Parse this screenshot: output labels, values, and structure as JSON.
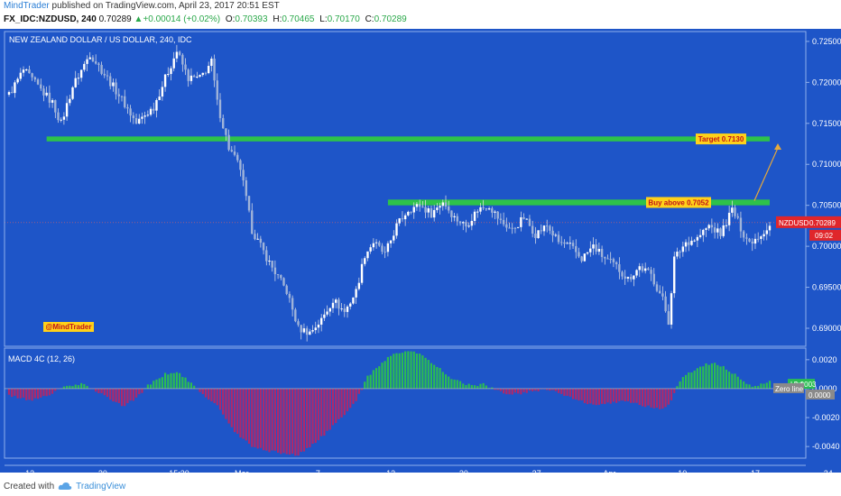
{
  "header": {
    "author": "MindTrader",
    "published": " published on TradingView.com, April 23, 2017 20:51 EST",
    "symbol": "FX_IDC:NZDUSD, 240",
    "last": "0.70289",
    "change": "+0.00014 (+0.02%)",
    "o_label": "O:",
    "o": "0.70393",
    "h_label": "H:",
    "h": "0.70465",
    "l_label": "L:",
    "l": "0.70170",
    "c_label": "C:",
    "c": "0.70289"
  },
  "footer": {
    "created_with": "Created with",
    "brand": "TradingView"
  },
  "colors": {
    "background": "#1e55c8",
    "panel_border": "#8fb0ec",
    "candle": "#e8e8e8",
    "zone": "#2ec24a",
    "arrow": "#e8a93a",
    "price_badge": "#e0262b",
    "macd_pos": "#2bbd52",
    "macd_neg": "#b0286a",
    "label_bg": "#ffd11a",
    "label_text": "#c0141b"
  },
  "chart_data": [
    {
      "type": "candlestick",
      "title": "NEW ZEALAND DOLLAR / US DOLLAR, 240, IDC",
      "ylim": [
        0.6878,
        0.7262
      ],
      "y_ticks": [
        0.725,
        0.72,
        0.715,
        0.71,
        0.705,
        0.7,
        0.695,
        0.69
      ],
      "y_tick_labels": [
        "0.72500",
        "0.72000",
        "0.71500",
        "0.71000",
        "0.70500",
        "0.70000",
        "0.69500",
        "0.69000"
      ],
      "x_tick_labels": [
        "13",
        "20",
        "15:30",
        "Mar",
        "7",
        "13",
        "20",
        "27",
        "Apr",
        "10",
        "17",
        "24"
      ],
      "trend_path": [
        [
          0,
          0.7185
        ],
        [
          5,
          0.7215
        ],
        [
          10,
          0.7195
        ],
        [
          15,
          0.7175
        ],
        [
          18,
          0.715
        ],
        [
          22,
          0.7195
        ],
        [
          28,
          0.7235
        ],
        [
          34,
          0.7205
        ],
        [
          38,
          0.7185
        ],
        [
          44,
          0.715
        ],
        [
          50,
          0.717
        ],
        [
          54,
          0.7205
        ],
        [
          58,
          0.7238
        ],
        [
          62,
          0.7205
        ],
        [
          66,
          0.7205
        ],
        [
          70,
          0.7225
        ],
        [
          72,
          0.7175
        ],
        [
          76,
          0.712
        ],
        [
          80,
          0.7095
        ],
        [
          84,
          0.702
        ],
        [
          90,
          0.698
        ],
        [
          96,
          0.6945
        ],
        [
          100,
          0.69
        ],
        [
          104,
          0.6895
        ],
        [
          108,
          0.691
        ],
        [
          112,
          0.6935
        ],
        [
          116,
          0.692
        ],
        [
          120,
          0.6945
        ],
        [
          123,
          0.699
        ],
        [
          126,
          0.7005
        ],
        [
          130,
          0.699
        ],
        [
          134,
          0.7025
        ],
        [
          138,
          0.7045
        ],
        [
          142,
          0.705
        ],
        [
          146,
          0.704
        ],
        [
          150,
          0.7055
        ],
        [
          154,
          0.7035
        ],
        [
          158,
          0.7025
        ],
        [
          162,
          0.7045
        ],
        [
          166,
          0.705
        ],
        [
          170,
          0.703
        ],
        [
          174,
          0.702
        ],
        [
          178,
          0.7035
        ],
        [
          182,
          0.7015
        ],
        [
          186,
          0.7025
        ],
        [
          190,
          0.7005
        ],
        [
          194,
          0.7
        ],
        [
          198,
          0.6985
        ],
        [
          202,
          0.7
        ],
        [
          206,
          0.6985
        ],
        [
          210,
          0.6975
        ],
        [
          214,
          0.696
        ],
        [
          218,
          0.6975
        ],
        [
          222,
          0.6965
        ],
        [
          226,
          0.6935
        ],
        [
          228,
          0.6908
        ],
        [
          230,
          0.6985
        ],
        [
          234,
          0.7005
        ],
        [
          238,
          0.701
        ],
        [
          242,
          0.7025
        ],
        [
          246,
          0.7015
        ],
        [
          250,
          0.7045
        ],
        [
          254,
          0.7015
        ],
        [
          256,
          0.7005
        ],
        [
          260,
          0.7015
        ],
        [
          263,
          0.7025
        ]
      ],
      "support_zone": [
        0.7128,
        0.7134
      ],
      "resistance_zone": [
        0.705,
        0.7057
      ],
      "current_price_line": 0.70289,
      "annotations": {
        "target": "Target 0.7130",
        "buy": "Buy above 0.7052",
        "price_label": "NZDUSD",
        "price_value": "0.70289",
        "countdown": "09:02",
        "watermark": "@MindTrader"
      }
    },
    {
      "type": "bar",
      "title": "MACD 4C (12, 26)",
      "ylim": [
        -0.0048,
        0.0028
      ],
      "y_ticks": [
        0.002,
        0.0,
        -0.002,
        -0.004
      ],
      "y_tick_labels": [
        "0.0020",
        "0.0000",
        "-0.0020",
        "-0.0040"
      ],
      "histogram_path": [
        [
          0,
          -0.0005
        ],
        [
          8,
          -0.0008
        ],
        [
          14,
          -0.0004
        ],
        [
          20,
          0.0002
        ],
        [
          26,
          0.0003
        ],
        [
          30,
          -0.0002
        ],
        [
          36,
          -0.0008
        ],
        [
          40,
          -0.0012
        ],
        [
          44,
          -0.0006
        ],
        [
          48,
          0.0002
        ],
        [
          54,
          0.001
        ],
        [
          58,
          0.0012
        ],
        [
          62,
          0.0005
        ],
        [
          66,
          -0.0002
        ],
        [
          72,
          -0.0012
        ],
        [
          78,
          -0.003
        ],
        [
          84,
          -0.004
        ],
        [
          90,
          -0.0043
        ],
        [
          96,
          -0.0045
        ],
        [
          100,
          -0.0046
        ],
        [
          104,
          -0.004
        ],
        [
          110,
          -0.003
        ],
        [
          116,
          -0.0018
        ],
        [
          120,
          -0.0008
        ],
        [
          124,
          0.0008
        ],
        [
          130,
          0.002
        ],
        [
          134,
          0.0025
        ],
        [
          138,
          0.0026
        ],
        [
          142,
          0.0024
        ],
        [
          146,
          0.0018
        ],
        [
          150,
          0.0012
        ],
        [
          154,
          0.0006
        ],
        [
          160,
          0.0002
        ],
        [
          164,
          0.0003
        ],
        [
          168,
          -0.0001
        ],
        [
          174,
          -0.0004
        ],
        [
          180,
          -0.0002
        ],
        [
          186,
          0.0
        ],
        [
          190,
          -0.0003
        ],
        [
          196,
          -0.0008
        ],
        [
          200,
          -0.001
        ],
        [
          204,
          -0.0012
        ],
        [
          208,
          -0.001
        ],
        [
          212,
          -0.0008
        ],
        [
          216,
          -0.001
        ],
        [
          220,
          -0.0012
        ],
        [
          224,
          -0.0014
        ],
        [
          228,
          -0.0012
        ],
        [
          232,
          0.0006
        ],
        [
          236,
          0.0012
        ],
        [
          240,
          0.0016
        ],
        [
          244,
          0.0018
        ],
        [
          248,
          0.0014
        ],
        [
          252,
          0.0008
        ],
        [
          256,
          0.0002
        ],
        [
          260,
          0.0003
        ],
        [
          263,
          0.0005
        ]
      ],
      "value_label": "0.0003",
      "zero_label": "Zero line",
      "zero_value": "0.0000",
      "hist_label": "Hist"
    }
  ]
}
